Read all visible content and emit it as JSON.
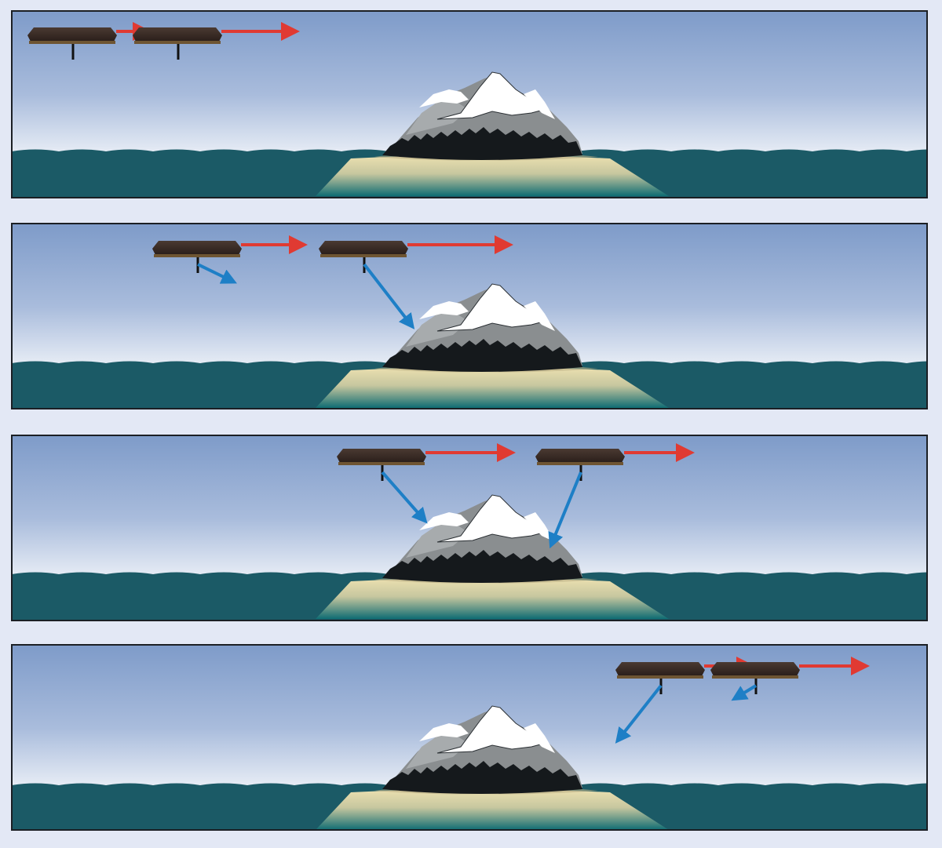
{
  "figure": {
    "background": "#e3e8f5",
    "panel_border": "#1b1f24",
    "colors": {
      "sky_top": "#7e9bc9",
      "sky_bottom": "#ffffff",
      "sea": "#1b5a66",
      "shallows_top": "#e9dcab",
      "shallows_bottom": "#0e6b72",
      "rock_dark": "#6f7375",
      "rock_light": "#a5a9aa",
      "snow": "#ffffff",
      "forest": "#15191c",
      "satellite_body": "#3a2a24",
      "satellite_base": "#6e5533",
      "velocity_arrow": "#e03a32",
      "beam_arrow": "#1e7fc6"
    }
  },
  "panels": [
    {
      "id": "pass-1",
      "satellites": [
        {
          "id": "sat-a",
          "velocity": "east",
          "beam": "none"
        },
        {
          "id": "sat-b",
          "velocity": "east",
          "beam": "none"
        }
      ]
    },
    {
      "id": "pass-2",
      "satellites": [
        {
          "id": "sat-a",
          "velocity": "east",
          "beam": "short-forward"
        },
        {
          "id": "sat-b",
          "velocity": "east",
          "beam": "forward-to-island"
        }
      ]
    },
    {
      "id": "pass-3",
      "satellites": [
        {
          "id": "sat-a",
          "velocity": "east",
          "beam": "forward-to-island"
        },
        {
          "id": "sat-b",
          "velocity": "east",
          "beam": "backward-to-island"
        }
      ]
    },
    {
      "id": "pass-4",
      "satellites": [
        {
          "id": "sat-a",
          "velocity": "east",
          "beam": "backward-past-island"
        },
        {
          "id": "sat-b",
          "velocity": "east",
          "beam": "short-backward"
        }
      ]
    }
  ]
}
